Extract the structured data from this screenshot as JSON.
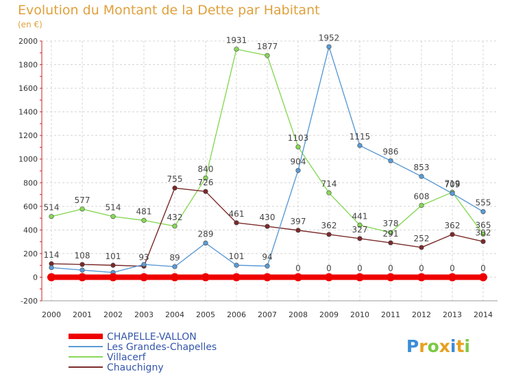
{
  "chart_data": {
    "type": "line",
    "title": "Evolution du Montant de la Dette par Habitant",
    "ylabel": "(en €)",
    "xlabel": "",
    "x": [
      "2000",
      "2001",
      "2002",
      "2003",
      "2004",
      "2005",
      "2006",
      "2007",
      "2008",
      "2009",
      "2010",
      "2011",
      "2012",
      "2013",
      "2014"
    ],
    "ylim": [
      -200,
      2000
    ],
    "yticks": [
      -200,
      0,
      200,
      400,
      600,
      800,
      1000,
      1200,
      1400,
      1600,
      1800,
      2000
    ],
    "grid": true,
    "legend_position": "bottom-left",
    "series": [
      {
        "name": "CHAPELLE-VALLON",
        "color": "#ee0000",
        "values": [
          0,
          0,
          0,
          0,
          0,
          0,
          0,
          0,
          0,
          0,
          0,
          0,
          0,
          0,
          0
        ],
        "labels": [
          "",
          "",
          "",
          "",
          "",
          "",
          "",
          "",
          "0",
          "0",
          "0",
          "0",
          "0",
          "0",
          "0"
        ]
      },
      {
        "name": "Les Grandes-Chapelles",
        "color": "#5b9bd5",
        "values": [
          81,
          60,
          40,
          108,
          89,
          289,
          101,
          94,
          904,
          1952,
          1115,
          986,
          853,
          709,
          555
        ],
        "labels": [
          "",
          "",
          "",
          "",
          "89",
          "289",
          "101",
          "94",
          "904",
          "1952",
          "1115",
          "986",
          "853",
          "709",
          "555"
        ]
      },
      {
        "name": "Villacerf",
        "color": "#88d858",
        "values": [
          514,
          577,
          514,
          481,
          432,
          840,
          1931,
          1877,
          1103,
          714,
          441,
          378,
          608,
          719,
          365
        ],
        "labels": [
          "514",
          "577",
          "514",
          "481",
          "432",
          "840",
          "1931",
          "1877",
          "1103",
          "714",
          "441",
          "378",
          "608",
          "719",
          "365"
        ]
      },
      {
        "name": "Chauchigny",
        "color": "#7a2a2a",
        "values": [
          114,
          108,
          101,
          93,
          755,
          726,
          461,
          430,
          397,
          362,
          327,
          291,
          252,
          362,
          302
        ],
        "labels": [
          "114",
          "108",
          "101",
          "93",
          "755",
          "726",
          "461",
          "430",
          "397",
          "362",
          "327",
          "291",
          "252",
          "362",
          "302"
        ]
      }
    ],
    "legend_colors": {
      "CHAPELLE-VALLON": "#ee0000",
      "Les Grandes-Chapelles": "#5b9bd5",
      "Villacerf": "#88d858",
      "Chauchigny": "#7a2a2a"
    }
  },
  "branding": {
    "logo_text": "Proxiti"
  }
}
